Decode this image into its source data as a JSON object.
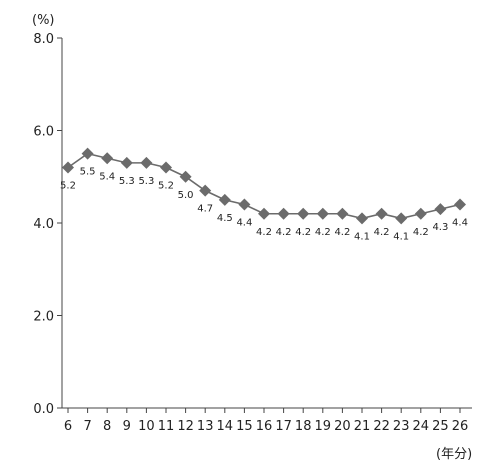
{
  "chart_data": {
    "type": "line",
    "y_unit_label": "(%)",
    "x_unit_label": "(年分)",
    "x": [
      "6",
      "7",
      "8",
      "9",
      "10",
      "11",
      "12",
      "13",
      "14",
      "15",
      "16",
      "17",
      "18",
      "19",
      "20",
      "21",
      "22",
      "23",
      "24",
      "25",
      "26"
    ],
    "values": [
      5.2,
      5.5,
      5.4,
      5.3,
      5.3,
      5.2,
      5.0,
      4.7,
      4.5,
      4.4,
      4.2,
      4.2,
      4.2,
      4.2,
      4.2,
      4.1,
      4.2,
      4.1,
      4.2,
      4.3,
      4.4
    ],
    "data_labels": [
      "5.2",
      "5.5",
      "5.4",
      "5.3",
      "5.3",
      "5.2",
      "5.0",
      "4.7",
      "4.5",
      "4.4",
      "4.2",
      "4.2",
      "4.2",
      "4.2",
      "4.2",
      "4.1",
      "4.2",
      "4.1",
      "4.2",
      "4.3",
      "4.4"
    ],
    "y_ticks": [
      "0.0",
      "2.0",
      "4.0",
      "6.0",
      "8.0"
    ],
    "ylim": [
      0,
      8
    ],
    "grid": false,
    "marker": "diamond",
    "series_color": "#6b6b6b"
  }
}
